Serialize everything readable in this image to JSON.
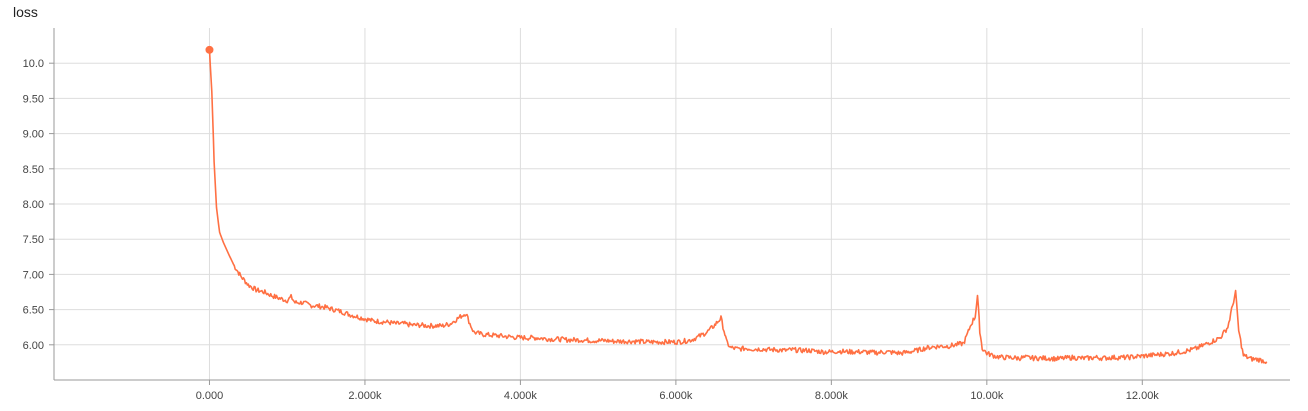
{
  "chart_data": {
    "type": "line",
    "title": "loss",
    "xlabel": "",
    "ylabel": "",
    "xlim": [
      -2000,
      13900
    ],
    "ylim": [
      5.5,
      10.5
    ],
    "grid": true,
    "x_ticks": [
      {
        "value": 0,
        "label": "0.000"
      },
      {
        "value": 2000,
        "label": "2.000k"
      },
      {
        "value": 4000,
        "label": "4.000k"
      },
      {
        "value": 6000,
        "label": "6.000k"
      },
      {
        "value": 8000,
        "label": "8.000k"
      },
      {
        "value": 10000,
        "label": "10.00k"
      },
      {
        "value": 12000,
        "label": "12.00k"
      }
    ],
    "y_ticks": [
      {
        "value": 6.0,
        "label": "6.00"
      },
      {
        "value": 6.5,
        "label": "6.50"
      },
      {
        "value": 7.0,
        "label": "7.00"
      },
      {
        "value": 7.5,
        "label": "7.50"
      },
      {
        "value": 8.0,
        "label": "8.00"
      },
      {
        "value": 8.5,
        "label": "8.50"
      },
      {
        "value": 9.0,
        "label": "9.00"
      },
      {
        "value": 9.5,
        "label": "9.50"
      },
      {
        "value": 10.0,
        "label": "10.0"
      }
    ],
    "series": [
      {
        "color": "#ff7043",
        "points": [
          [
            0,
            10.19
          ],
          [
            30,
            9.6
          ],
          [
            60,
            8.6
          ],
          [
            90,
            7.95
          ],
          [
            130,
            7.6
          ],
          [
            180,
            7.45
          ],
          [
            250,
            7.28
          ],
          [
            320,
            7.12
          ],
          [
            400,
            6.98
          ],
          [
            500,
            6.85
          ],
          [
            600,
            6.78
          ],
          [
            700,
            6.75
          ],
          [
            800,
            6.7
          ],
          [
            900,
            6.66
          ],
          [
            1000,
            6.63
          ],
          [
            1050,
            6.68
          ],
          [
            1100,
            6.6
          ],
          [
            1200,
            6.6
          ],
          [
            1300,
            6.56
          ],
          [
            1400,
            6.55
          ],
          [
            1500,
            6.53
          ],
          [
            1600,
            6.5
          ],
          [
            1700,
            6.47
          ],
          [
            1800,
            6.43
          ],
          [
            1900,
            6.4
          ],
          [
            2000,
            6.37
          ],
          [
            2100,
            6.34
          ],
          [
            2200,
            6.33
          ],
          [
            2300,
            6.32
          ],
          [
            2400,
            6.3
          ],
          [
            2500,
            6.3
          ],
          [
            2600,
            6.28
          ],
          [
            2700,
            6.28
          ],
          [
            2800,
            6.27
          ],
          [
            2900,
            6.27
          ],
          [
            3000,
            6.27
          ],
          [
            3100,
            6.3
          ],
          [
            3200,
            6.38
          ],
          [
            3300,
            6.45
          ],
          [
            3350,
            6.3
          ],
          [
            3400,
            6.18
          ],
          [
            3500,
            6.15
          ],
          [
            3600,
            6.14
          ],
          [
            3700,
            6.13
          ],
          [
            3800,
            6.12
          ],
          [
            3900,
            6.11
          ],
          [
            4000,
            6.1
          ],
          [
            4100,
            6.1
          ],
          [
            4200,
            6.1
          ],
          [
            4300,
            6.09
          ],
          [
            4400,
            6.08
          ],
          [
            4500,
            6.08
          ],
          [
            4600,
            6.07
          ],
          [
            4700,
            6.07
          ],
          [
            4800,
            6.07
          ],
          [
            4900,
            6.06
          ],
          [
            5000,
            6.06
          ],
          [
            5100,
            6.06
          ],
          [
            5200,
            6.05
          ],
          [
            5300,
            6.05
          ],
          [
            5400,
            6.05
          ],
          [
            5500,
            6.05
          ],
          [
            5600,
            6.04
          ],
          [
            5700,
            6.04
          ],
          [
            5800,
            6.04
          ],
          [
            5900,
            6.04
          ],
          [
            6000,
            6.04
          ],
          [
            6100,
            6.05
          ],
          [
            6200,
            6.07
          ],
          [
            6300,
            6.12
          ],
          [
            6400,
            6.18
          ],
          [
            6500,
            6.28
          ],
          [
            6580,
            6.38
          ],
          [
            6620,
            6.2
          ],
          [
            6650,
            6.05
          ],
          [
            6700,
            5.96
          ],
          [
            6800,
            5.94
          ],
          [
            6900,
            5.95
          ],
          [
            7000,
            5.94
          ],
          [
            7100,
            5.94
          ],
          [
            7200,
            5.93
          ],
          [
            7300,
            5.93
          ],
          [
            7400,
            5.92
          ],
          [
            7500,
            5.93
          ],
          [
            7600,
            5.92
          ],
          [
            7700,
            5.92
          ],
          [
            7800,
            5.91
          ],
          [
            7900,
            5.9
          ],
          [
            8000,
            5.9
          ],
          [
            8100,
            5.91
          ],
          [
            8200,
            5.9
          ],
          [
            8300,
            5.9
          ],
          [
            8400,
            5.9
          ],
          [
            8500,
            5.89
          ],
          [
            8600,
            5.89
          ],
          [
            8700,
            5.9
          ],
          [
            8800,
            5.89
          ],
          [
            8900,
            5.88
          ],
          [
            9000,
            5.9
          ],
          [
            9100,
            5.92
          ],
          [
            9200,
            5.95
          ],
          [
            9300,
            5.97
          ],
          [
            9400,
            5.98
          ],
          [
            9500,
            5.98
          ],
          [
            9600,
            6.0
          ],
          [
            9700,
            6.02
          ],
          [
            9750,
            6.15
          ],
          [
            9800,
            6.3
          ],
          [
            9850,
            6.4
          ],
          [
            9880,
            6.7
          ],
          [
            9910,
            6.2
          ],
          [
            9940,
            5.95
          ],
          [
            10000,
            5.88
          ],
          [
            10100,
            5.84
          ],
          [
            10200,
            5.82
          ],
          [
            10300,
            5.82
          ],
          [
            10400,
            5.81
          ],
          [
            10500,
            5.82
          ],
          [
            10600,
            5.81
          ],
          [
            10700,
            5.81
          ],
          [
            10800,
            5.81
          ],
          [
            10900,
            5.8
          ],
          [
            11000,
            5.81
          ],
          [
            11100,
            5.82
          ],
          [
            11200,
            5.81
          ],
          [
            11300,
            5.81
          ],
          [
            11400,
            5.82
          ],
          [
            11500,
            5.81
          ],
          [
            11600,
            5.82
          ],
          [
            11700,
            5.82
          ],
          [
            11800,
            5.82
          ],
          [
            11900,
            5.83
          ],
          [
            12000,
            5.84
          ],
          [
            12100,
            5.85
          ],
          [
            12200,
            5.86
          ],
          [
            12300,
            5.87
          ],
          [
            12400,
            5.88
          ],
          [
            12500,
            5.9
          ],
          [
            12600,
            5.92
          ],
          [
            12700,
            5.95
          ],
          [
            12800,
            6.0
          ],
          [
            12900,
            6.05
          ],
          [
            13000,
            6.1
          ],
          [
            13100,
            6.25
          ],
          [
            13150,
            6.5
          ],
          [
            13200,
            6.75
          ],
          [
            13240,
            6.2
          ],
          [
            13300,
            5.85
          ],
          [
            13400,
            5.8
          ],
          [
            13500,
            5.79
          ],
          [
            13600,
            5.76
          ]
        ]
      }
    ]
  }
}
